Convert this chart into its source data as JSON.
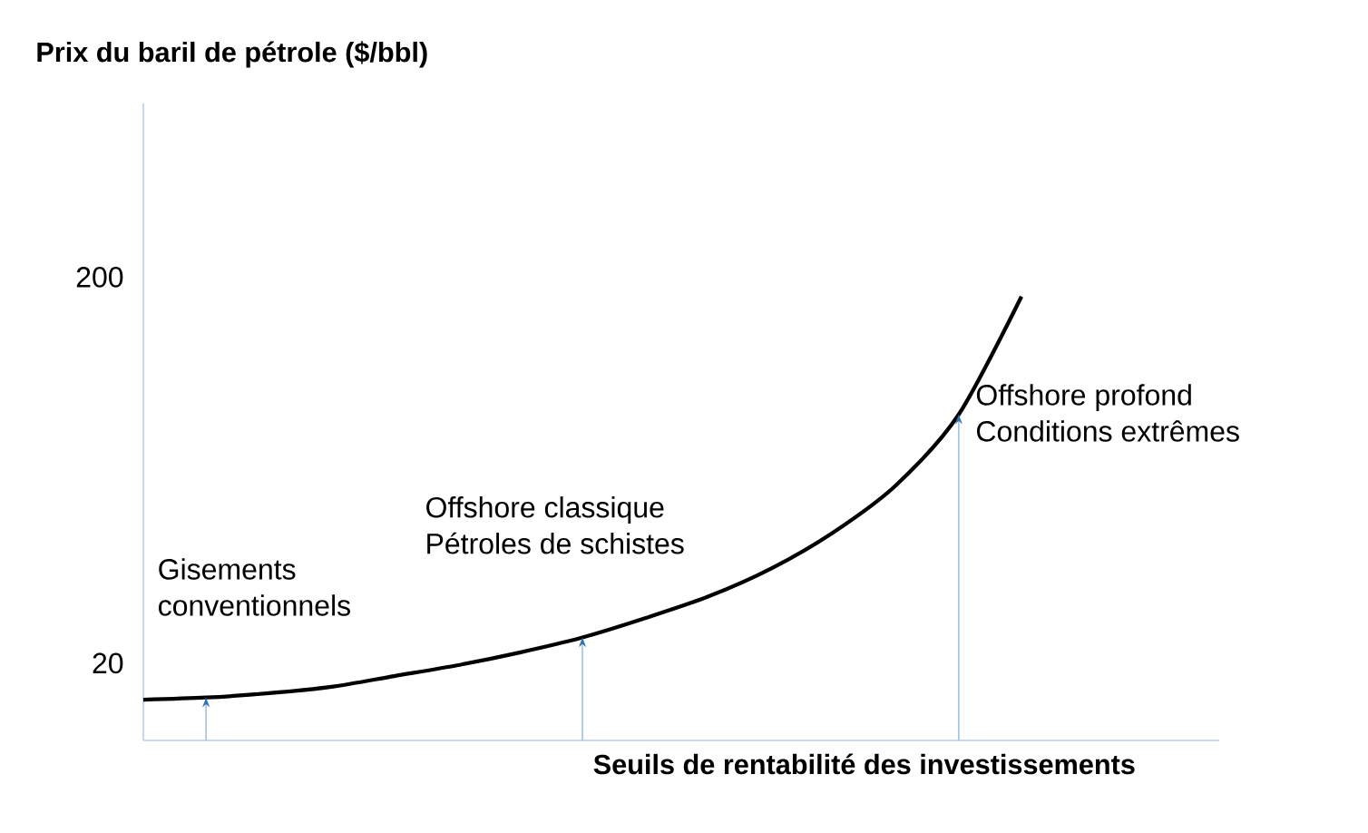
{
  "chart_data": {
    "type": "line",
    "ylabel": "Prix du baril de pétrole ($/bbl)",
    "xlabel": "Seuils de rentabilité des investissements",
    "ylim": [
      -16,
      281
    ],
    "yticks": [
      20,
      200
    ],
    "tick_labels": "y",
    "categories": [
      null,
      null,
      null,
      null,
      null,
      null,
      null,
      null,
      null,
      null,
      null,
      null,
      null,
      null,
      null
    ],
    "series": [
      {
        "color": "#000000",
        "values": [
          3,
          4,
          6,
          9,
          14,
          19,
          25,
          32,
          41,
          51,
          64,
          81,
          103,
          136,
          191
        ]
      }
    ],
    "annotations": [
      "Gisements",
      "conventionnels",
      "Offshore classique",
      "Pétroles de schistes",
      "Offshore profond",
      "Conditions extrêmes"
    ]
  }
}
